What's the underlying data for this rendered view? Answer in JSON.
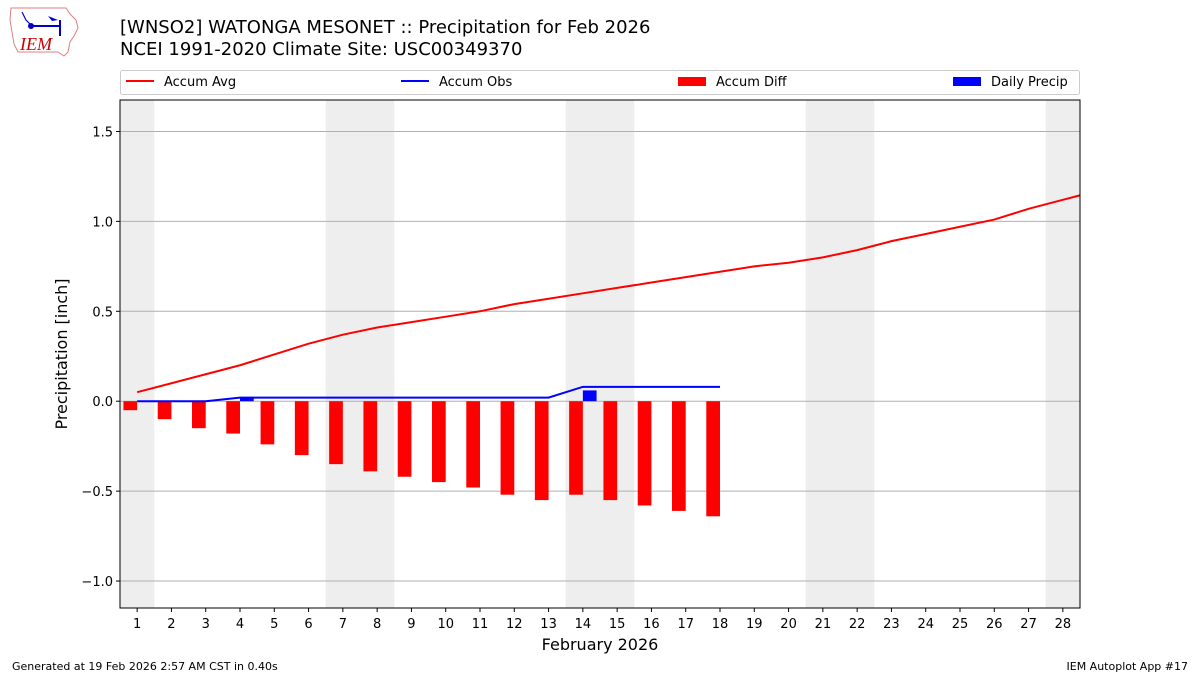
{
  "header": {
    "title_line1": "[WNSO2] WATONGA MESONET :: Precipitation for Feb 2026",
    "title_line2": "NCEI 1991-2020 Climate Site: USC00349370",
    "logo_text": "IEM"
  },
  "footer": {
    "generated": "Generated at 19 Feb 2026 2:57 AM CST in 0.40s",
    "app": "IEM Autoplot App #17"
  },
  "colors": {
    "avg": "#ff0000",
    "obs": "#0000ff",
    "diff": "#ff0000",
    "daily": "#0000ff",
    "weekend": "#eeeeee",
    "grid": "#b0b0b0"
  },
  "chart_data": {
    "type": "bar+line",
    "xlabel": "February 2026",
    "ylabel": "Precipitation [inch]",
    "xlim": [
      0.5,
      28.5
    ],
    "ylim": [
      -1.15,
      1.675
    ],
    "grid": true,
    "legend_placement": "top",
    "x_ticks": [
      1,
      2,
      3,
      4,
      5,
      6,
      7,
      8,
      9,
      10,
      11,
      12,
      13,
      14,
      15,
      16,
      17,
      18,
      19,
      20,
      21,
      22,
      23,
      24,
      25,
      26,
      27,
      28
    ],
    "y_ticks": [
      -1.0,
      -0.5,
      0.0,
      0.5,
      1.0,
      1.5
    ],
    "y_tick_labels": [
      "−1.0",
      "−0.5",
      "0.0",
      "0.5",
      "1.0",
      "1.5"
    ],
    "weekend_days": [
      1,
      7,
      8,
      14,
      15,
      21,
      22,
      28
    ],
    "legend": [
      "Accum Avg",
      "Accum Obs",
      "Accum Diff",
      "Daily Precip"
    ],
    "series": [
      {
        "name": "Accum Avg",
        "kind": "line",
        "x": [
          1,
          2,
          3,
          4,
          5,
          6,
          7,
          8,
          9,
          10,
          11,
          12,
          13,
          14,
          15,
          16,
          17,
          18,
          19,
          20,
          21,
          22,
          23,
          24,
          25,
          26,
          27,
          28,
          29
        ],
        "values": [
          0.05,
          0.1,
          0.15,
          0.2,
          0.26,
          0.32,
          0.37,
          0.41,
          0.44,
          0.47,
          0.5,
          0.54,
          0.57,
          0.6,
          0.63,
          0.66,
          0.69,
          0.72,
          0.75,
          0.77,
          0.8,
          0.84,
          0.89,
          0.93,
          0.97,
          1.01,
          1.07,
          1.12,
          1.17
        ]
      },
      {
        "name": "Accum Obs",
        "kind": "line",
        "x": [
          1,
          2,
          3,
          4,
          5,
          6,
          7,
          8,
          9,
          10,
          11,
          12,
          13,
          14,
          15,
          16,
          17,
          18
        ],
        "values": [
          0,
          0,
          0,
          0.02,
          0.02,
          0.02,
          0.02,
          0.02,
          0.02,
          0.02,
          0.02,
          0.02,
          0.02,
          0.08,
          0.08,
          0.08,
          0.08,
          0.08
        ]
      },
      {
        "name": "Accum Diff",
        "kind": "bar",
        "x": [
          1,
          2,
          3,
          4,
          5,
          6,
          7,
          8,
          9,
          10,
          11,
          12,
          13,
          14,
          15,
          16,
          17,
          18
        ],
        "values": [
          -0.05,
          -0.1,
          -0.15,
          -0.18,
          -0.24,
          -0.3,
          -0.35,
          -0.39,
          -0.42,
          -0.45,
          -0.48,
          -0.52,
          -0.55,
          -0.52,
          -0.55,
          -0.58,
          -0.61,
          -0.64
        ]
      },
      {
        "name": "Daily Precip",
        "kind": "bar",
        "x": [
          4,
          14
        ],
        "values": [
          0.02,
          0.06
        ]
      }
    ]
  }
}
